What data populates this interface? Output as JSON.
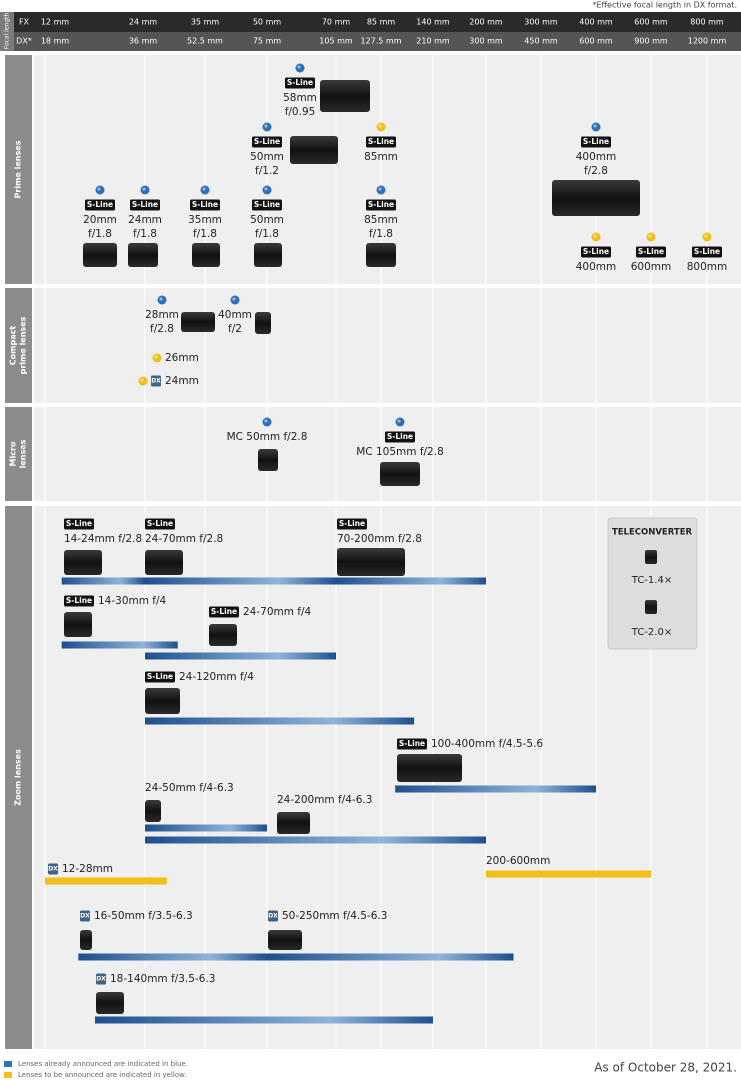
{
  "note": "*Effective focal length in DX format.",
  "header": {
    "axis_label": "Focal length",
    "fx_label": "FX",
    "dx_label": "DX*",
    "fx": [
      {
        "value": 12,
        "label": "12 mm"
      },
      {
        "value": 24,
        "label": "24 mm"
      },
      {
        "value": 35,
        "label": "35 mm"
      },
      {
        "value": 50,
        "label": "50 mm"
      },
      {
        "value": 70,
        "label": "70 mm"
      },
      {
        "value": 85,
        "label": "85 mm"
      },
      {
        "value": 140,
        "label": "140 mm"
      },
      {
        "value": 200,
        "label": "200 mm"
      },
      {
        "value": 300,
        "label": "300 mm"
      },
      {
        "value": 400,
        "label": "400 mm"
      },
      {
        "value": 600,
        "label": "600 mm"
      },
      {
        "value": 800,
        "label": "800 mm"
      }
    ],
    "dx": [
      {
        "value": 18,
        "label": "18 mm"
      },
      {
        "value": 36,
        "label": "36 mm"
      },
      {
        "value": 52.5,
        "label": "52.5 mm"
      },
      {
        "value": 75,
        "label": "75 mm"
      },
      {
        "value": 105,
        "label": "105 mm"
      },
      {
        "value": 127.5,
        "label": "127.5 mm"
      },
      {
        "value": 210,
        "label": "210 mm"
      },
      {
        "value": 300,
        "label": "300 mm"
      },
      {
        "value": 450,
        "label": "450 mm"
      },
      {
        "value": 600,
        "label": "600 mm"
      },
      {
        "value": 900,
        "label": "900 mm"
      },
      {
        "value": 1200,
        "label": "1200 mm"
      }
    ]
  },
  "sections": [
    {
      "title": [
        "Prime lenses"
      ],
      "lenses": [
        {
          "badge": "S-Line",
          "name": [
            "58mm",
            "f/0.95"
          ],
          "color": "#2d6fb8"
        },
        {
          "badge": "S-Line",
          "name": [
            "50mm",
            "f/1.2"
          ],
          "color": "#2d6fb8"
        },
        {
          "badge": "S-Line",
          "name": [
            "85mm"
          ],
          "color": "#f2be1a"
        },
        {
          "badge": "S-Line",
          "name": [
            "400mm",
            "f/2.8"
          ],
          "color": "#2d6fb8"
        },
        {
          "badge": "S-Line",
          "name": [
            "20mm",
            "f/1.8"
          ],
          "color": "#2d6fb8"
        },
        {
          "badge": "S-Line",
          "name": [
            "24mm",
            "f/1.8"
          ],
          "color": "#2d6fb8"
        },
        {
          "badge": "S-Line",
          "name": [
            "35mm",
            "f/1.8"
          ],
          "color": "#2d6fb8"
        },
        {
          "badge": "S-Line",
          "name": [
            "50mm",
            "f/1.8"
          ],
          "color": "#2d6fb8"
        },
        {
          "badge": "S-Line",
          "name": [
            "85mm",
            "f/1.8"
          ],
          "color": "#2d6fb8"
        },
        {
          "badge": "S-Line",
          "name": [
            "400mm"
          ],
          "color": "#f2be1a"
        },
        {
          "badge": "S-Line",
          "name": [
            "600mm"
          ],
          "color": "#f2be1a"
        },
        {
          "badge": "S-Line",
          "name": [
            "800mm"
          ],
          "color": "#f2be1a"
        }
      ]
    },
    {
      "title": [
        "Compact",
        "prime lenses"
      ],
      "lenses": [
        {
          "name": [
            "28mm",
            "f/2.8"
          ],
          "color": "#2d6fb8"
        },
        {
          "name": [
            "40mm",
            "f/2"
          ],
          "color": "#2d6fb8"
        },
        {
          "name": [
            "26mm"
          ],
          "color": "#f2be1a"
        },
        {
          "badge": "DX",
          "name": [
            "24mm"
          ],
          "color": "#f2be1a"
        }
      ]
    },
    {
      "title": [
        "Micro",
        "lenses"
      ],
      "lenses": [
        {
          "name": [
            "MC 50mm f/2.8"
          ],
          "color": "#2d6fb8"
        },
        {
          "badge": "S-Line",
          "name": [
            "MC 105mm f/2.8"
          ],
          "color": "#2d6fb8"
        }
      ]
    },
    {
      "title": [
        "Zoom lenses"
      ],
      "lenses": [
        {
          "badge": "S-Line",
          "name": [
            "14-24mm f/2.8"
          ],
          "range": [
            14,
            24
          ],
          "color": "#1d4f8f"
        },
        {
          "badge": "S-Line",
          "name": [
            "24-70mm f/2.8"
          ],
          "range": [
            24,
            70
          ],
          "color": "#1d4f8f"
        },
        {
          "badge": "S-Line",
          "name": [
            "70-200mm f/2.8"
          ],
          "range": [
            70,
            200
          ],
          "color": "#1d4f8f"
        },
        {
          "badge": "S-Line",
          "name": [
            "14-30mm f/4"
          ],
          "range": [
            14,
            30
          ],
          "color": "#1d4f8f"
        },
        {
          "badge": "S-Line",
          "name": [
            "24-70mm f/4"
          ],
          "range": [
            24,
            70
          ],
          "color": "#1d4f8f"
        },
        {
          "badge": "S-Line",
          "name": [
            "24-120mm f/4"
          ],
          "range": [
            24,
            120
          ],
          "color": "#1d4f8f"
        },
        {
          "badge": "S-Line",
          "name": [
            "100-400mm f/4.5-5.6"
          ],
          "range": [
            100,
            400
          ],
          "color": "#1d4f8f"
        },
        {
          "name": [
            "24-50mm f/4-6.3"
          ],
          "range": [
            24,
            50
          ],
          "color": "#1d4f8f"
        },
        {
          "name": [
            "24-200mm f/4-6.3"
          ],
          "range": [
            24,
            200
          ],
          "color": "#1d4f8f"
        },
        {
          "badge": "DX",
          "name": [
            "12-28mm"
          ],
          "range": [
            12,
            28
          ],
          "color": "#f2be1a"
        },
        {
          "name": [
            "200-600mm"
          ],
          "range": [
            200,
            600
          ],
          "color": "#f2be1a"
        },
        {
          "badge": "DX",
          "name": [
            "16-50mm f/3.5-6.3"
          ],
          "range": [
            16,
            50
          ],
          "color": "#1d4f8f"
        },
        {
          "badge": "DX",
          "name": [
            "50-250mm f/4.5-6.3"
          ],
          "range": [
            50,
            250
          ],
          "color": "#1d4f8f"
        },
        {
          "badge": "DX",
          "name": [
            "18-140mm f/3.5-6.3"
          ],
          "range": [
            18,
            140
          ],
          "color": "#1d4f8f"
        }
      ]
    }
  ],
  "teleconverter": {
    "title": "TELECONVERTER",
    "items": [
      "TC-1.4×",
      "TC-2.0×"
    ]
  },
  "legend": [
    {
      "text": "Lenses already announced are indicated in blue.",
      "color": "#2d6fb8"
    },
    {
      "text": "Lenses to be announced are indicated in yellow.",
      "color": "#f2be1a"
    }
  ],
  "date": "As of October 28, 2021."
}
